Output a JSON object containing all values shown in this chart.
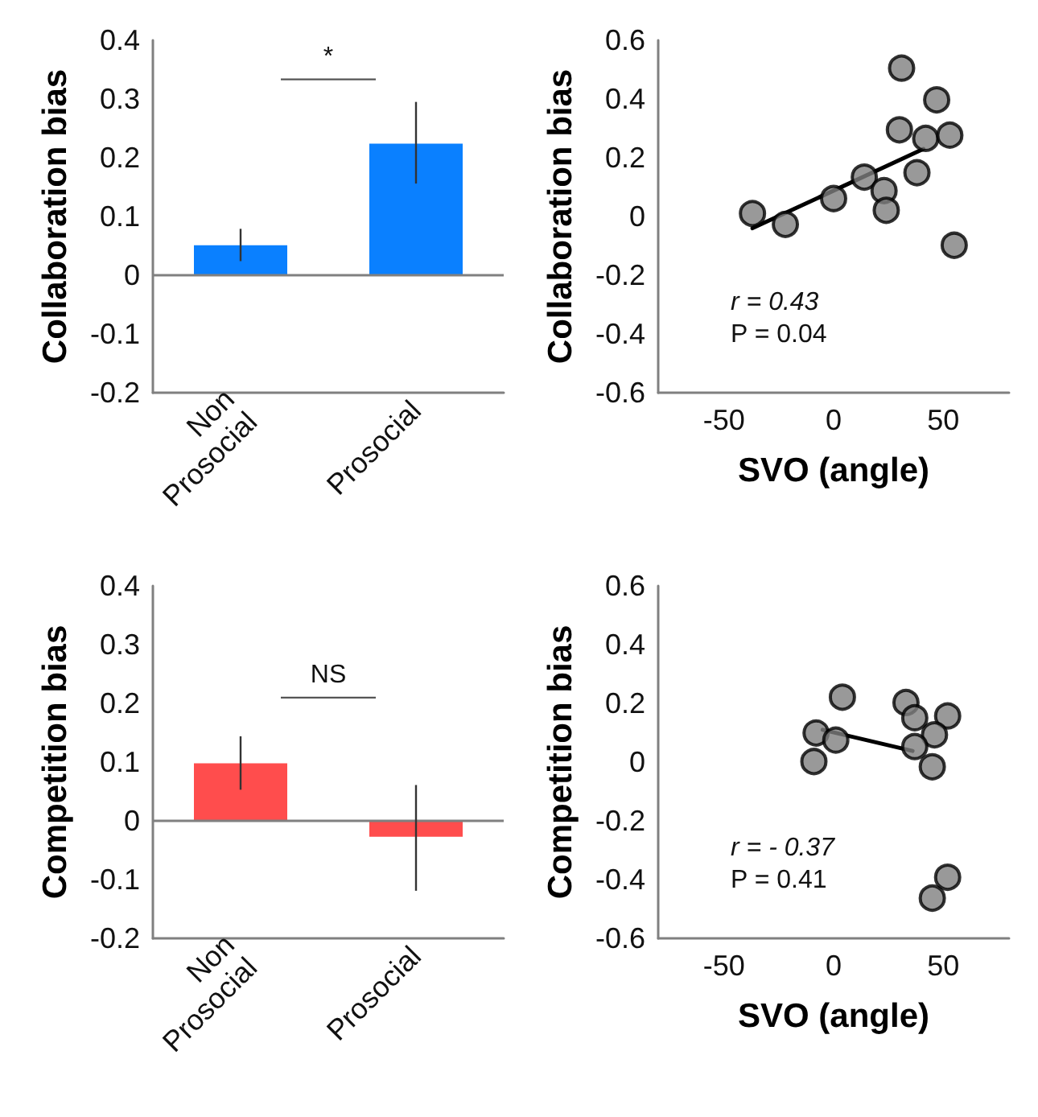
{
  "chart_data": [
    {
      "type": "bar",
      "ylabel": "Collaboration bias",
      "categories": [
        "Non Prosocial",
        "Prosocial"
      ],
      "values": [
        0.051,
        0.224
      ],
      "errors": [
        [
          0.024,
          0.079
        ],
        [
          0.156,
          0.295
        ]
      ],
      "color": "#0a80ff",
      "ylim": [
        -0.2,
        0.4
      ],
      "yticks": [
        -0.2,
        -0.1,
        0,
        0.1,
        0.2,
        0.3,
        0.4
      ],
      "ref_lines": [
        {
          "axis": "y",
          "value": 0,
          "color": "#808080"
        }
      ],
      "annotations": [
        "*"
      ],
      "grid": false
    },
    {
      "type": "scatter",
      "xlabel": "SVO (angle)",
      "ylabel": "Collaboration bias",
      "series": [
        {
          "color": "#808080",
          "marker": "circle",
          "x": [
            -37,
            -22,
            0,
            14,
            23,
            24,
            30,
            31,
            38,
            42,
            47,
            53,
            55
          ],
          "values": [
            0.01,
            -0.027,
            0.061,
            0.134,
            0.088,
            0.021,
            0.295,
            0.505,
            0.149,
            0.266,
            0.397,
            0.277,
            -0.098
          ]
        },
        {
          "type": "line",
          "color": "#000000",
          "marker": "none",
          "x": [
            -37,
            41
          ],
          "values": [
            -0.04,
            0.23
          ]
        }
      ],
      "xlim": [
        -80,
        80
      ],
      "xticks": [
        -50,
        0,
        50
      ],
      "ylim": [
        -0.6,
        0.6
      ],
      "yticks": [
        -0.6,
        -0.4,
        -0.2,
        0,
        0.2,
        0.4,
        0.6
      ],
      "annotations": [
        "r = 0.43",
        "P = 0.04"
      ],
      "grid": false
    },
    {
      "type": "bar",
      "ylabel": "Competition bias",
      "categories": [
        "Non Prosocial",
        "Prosocial"
      ],
      "values": [
        0.098,
        -0.027
      ],
      "errors": [
        [
          0.053,
          0.144
        ],
        [
          -0.119,
          0.061
        ]
      ],
      "color": "#ff4d4d",
      "ylim": [
        -0.2,
        0.4
      ],
      "yticks": [
        -0.2,
        -0.1,
        0,
        0.1,
        0.2,
        0.3,
        0.4
      ],
      "ref_lines": [
        {
          "axis": "y",
          "value": 0,
          "color": "#808080"
        }
      ],
      "annotations": [
        "NS"
      ],
      "grid": false
    },
    {
      "type": "scatter",
      "xlabel": "SVO (angle)",
      "ylabel": "Competition bias",
      "series": [
        {
          "color": "#808080",
          "marker": "circle",
          "x": [
            4,
            -8,
            1,
            -9,
            33,
            37,
            52,
            46,
            37,
            45,
            52,
            45
          ],
          "values": [
            0.221,
            0.099,
            0.075,
            0.002,
            0.203,
            0.151,
            0.157,
            0.093,
            0.053,
            -0.016,
            -0.392,
            -0.463
          ]
        },
        {
          "type": "line",
          "color": "#000000",
          "marker": "none",
          "x": [
            -5,
            36
          ],
          "values": [
            0.11,
            0.038
          ]
        }
      ],
      "xlim": [
        -80,
        80
      ],
      "xticks": [
        -50,
        0,
        50
      ],
      "ylim": [
        -0.6,
        0.6
      ],
      "yticks": [
        -0.6,
        -0.4,
        -0.2,
        0,
        0.2,
        0.4,
        0.6
      ],
      "annotations": [
        "r = - 0.37",
        "P = 0.41"
      ],
      "grid": false
    }
  ]
}
